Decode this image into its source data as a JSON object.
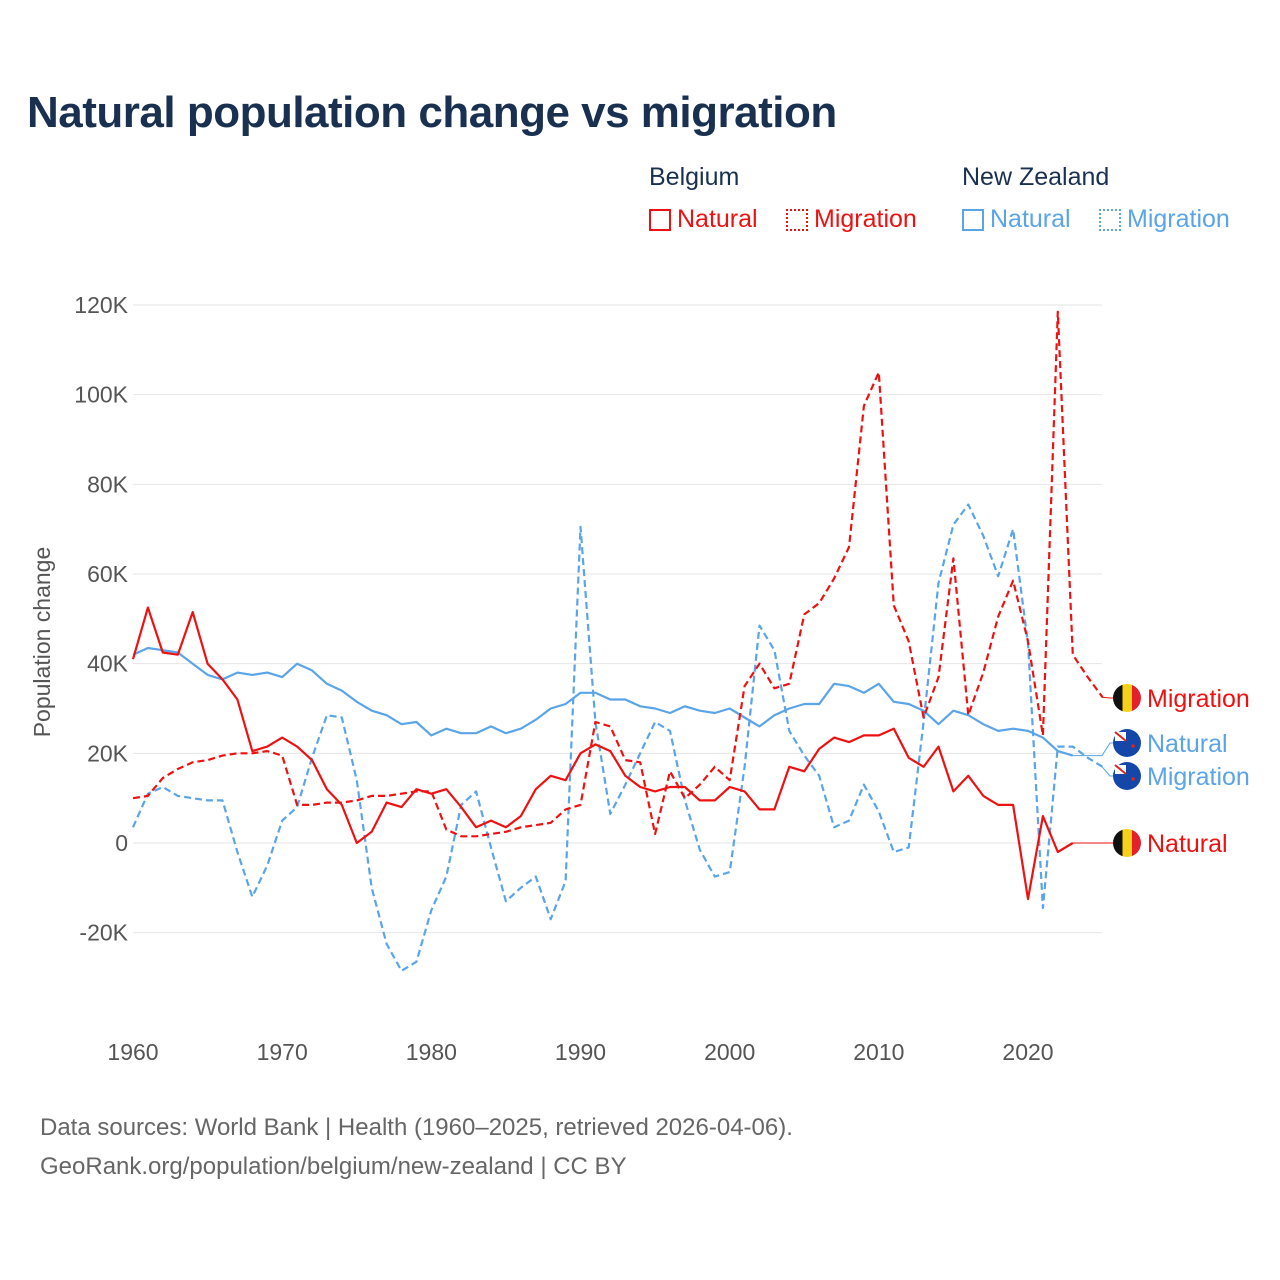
{
  "chart_data": {
    "type": "line",
    "title": "Natural population change vs migration",
    "ylabel": "Population change",
    "xlabel": "",
    "ylim": [
      -40000,
      120000
    ],
    "xlim": [
      1960,
      2025
    ],
    "yticks": [
      -20000,
      0,
      20000,
      40000,
      60000,
      80000,
      100000,
      120000
    ],
    "ytick_labels": [
      "-20K",
      "0",
      "20K",
      "40K",
      "60K",
      "80K",
      "100K",
      "120K"
    ],
    "xticks": [
      1960,
      1970,
      1980,
      1990,
      2000,
      2010,
      2020
    ],
    "xtick_labels": [
      "1960",
      "1970",
      "1980",
      "1990",
      "2000",
      "2010",
      "2020"
    ],
    "grid": true,
    "legend_position": "top-right",
    "legend_groups": [
      "Belgium",
      "New Zealand"
    ],
    "series": [
      {
        "name": "Natural",
        "country": "Belgium",
        "color": "#ee1111",
        "dash": "solid",
        "start": 1960,
        "values": [
          41000,
          52500,
          42500,
          42000,
          51500,
          40000,
          36500,
          32000,
          20500,
          21500,
          23500,
          21500,
          18500,
          12000,
          8500,
          0,
          2500,
          9000,
          8000,
          12000,
          11000,
          12000,
          8000,
          3500,
          5000,
          3500,
          6000,
          12000,
          15000,
          14000,
          20000,
          22000,
          20500,
          15000,
          12500,
          11500,
          12500,
          12500,
          9500,
          9500,
          12500,
          11500,
          7500,
          7500,
          17000,
          16000,
          21000,
          23500,
          22500,
          24000,
          24000,
          25500,
          19000,
          17000,
          21500,
          11500,
          15000,
          10500,
          8500,
          8500,
          -12500,
          6000,
          -2000,
          0
        ]
      },
      {
        "name": "Migration",
        "country": "Belgium",
        "color": "#ee1111",
        "dash": "dashed",
        "start": 1960,
        "values": [
          10000,
          10500,
          14500,
          16500,
          18000,
          18500,
          19500,
          20000,
          20000,
          20500,
          19500,
          8500,
          8500,
          9000,
          9000,
          9500,
          10500,
          10500,
          11000,
          11500,
          11500,
          3000,
          1500,
          1500,
          2000,
          2500,
          3500,
          4000,
          4500,
          7500,
          8500,
          27000,
          26000,
          18500,
          18000,
          2000,
          16000,
          10000,
          13000,
          17000,
          14000,
          35000,
          40000,
          34500,
          35500,
          51000,
          53500,
          59000,
          66000,
          97500,
          105000,
          53000,
          45000,
          28000,
          37000,
          63500,
          28500,
          38000,
          50500,
          58500,
          45000,
          24000,
          118500,
          42000,
          37000,
          32500
        ]
      },
      {
        "name": "Natural",
        "country": "New Zealand",
        "color": "#5ba4e8",
        "dash": "solid",
        "start": 1960,
        "values": [
          42000,
          43500,
          43000,
          42500,
          40000,
          37500,
          36500,
          38000,
          37500,
          38000,
          37000,
          40000,
          38500,
          35500,
          34000,
          31500,
          29500,
          28500,
          26500,
          27000,
          24000,
          25500,
          24500,
          24500,
          26000,
          24500,
          25500,
          27500,
          30000,
          31000,
          33500,
          33500,
          32000,
          32000,
          30500,
          30000,
          29000,
          30500,
          29500,
          29000,
          30000,
          28000,
          26000,
          28500,
          30000,
          31000,
          31000,
          35500,
          35000,
          33500,
          35500,
          31500,
          31000,
          29500,
          26500,
          29500,
          28500,
          26500,
          25000,
          25500,
          25000,
          23500,
          20500,
          19500
        ]
      },
      {
        "name": "Migration",
        "country": "New Zealand",
        "color": "#5ba4e8",
        "dash": "dashed",
        "start": 1960,
        "values": [
          3500,
          11000,
          12500,
          10500,
          10000,
          9500,
          9500,
          -2000,
          -12000,
          -5000,
          5000,
          8000,
          19000,
          28500,
          28000,
          14000,
          -10000,
          -22500,
          -28500,
          -26500,
          -15000,
          -7500,
          8500,
          11500,
          -1000,
          -13000,
          -10000,
          -7500,
          -17000,
          -8500,
          70500,
          27000,
          6500,
          13000,
          20000,
          27000,
          25000,
          9500,
          -1500,
          -7500,
          -6500,
          17000,
          48500,
          43000,
          25000,
          19500,
          15000,
          3500,
          5000,
          13000,
          7000,
          -2000,
          -1000,
          27000,
          58000,
          71000,
          75500,
          68500,
          59500,
          70000,
          44500,
          -14500,
          21500,
          21500,
          19000,
          17000
        ]
      }
    ],
    "end_labels": [
      "Migration",
      "Natural",
      "Migration",
      "Natural"
    ]
  },
  "legend": {
    "belgium": "Belgium",
    "new_zealand": "New Zealand",
    "natural": "Natural",
    "migration": "Migration"
  },
  "source": {
    "line1": "Data sources: World Bank | Health (1960–2025, retrieved 2026-04-06).",
    "line2": "GeoRank.org/population/belgium/new-zealand | CC BY"
  },
  "colors": {
    "belgium": "#ee1111",
    "new_zealand": "#5ba4e8",
    "title": "#1a3050"
  }
}
